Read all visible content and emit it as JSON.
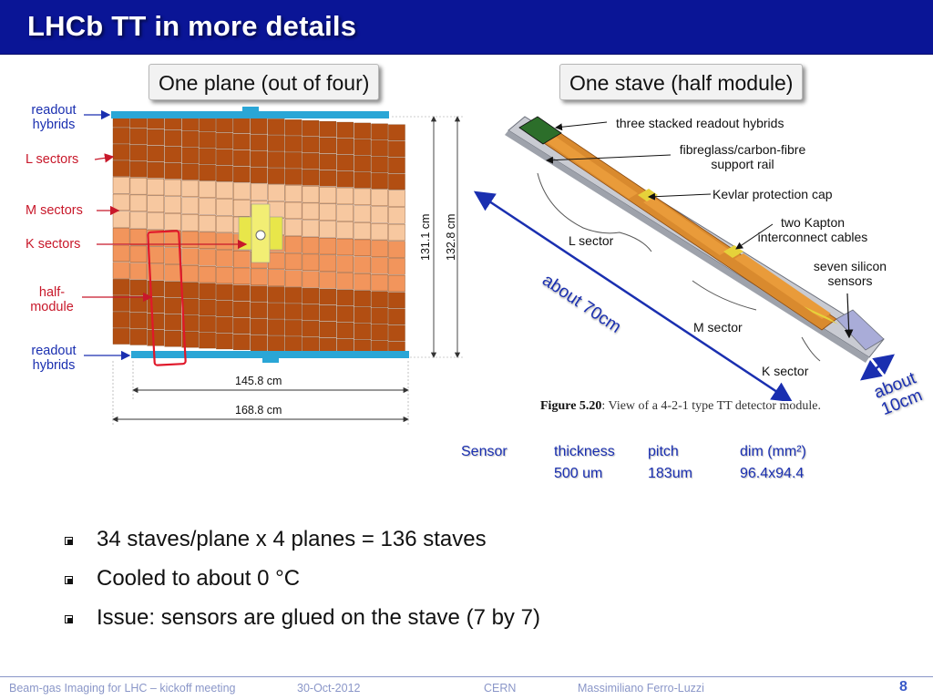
{
  "title": "LHCb TT in more details",
  "callouts": {
    "plane": "One plane (out of four)",
    "stave": "One stave (half module)"
  },
  "plane_labels": {
    "readout_top": "readout hybrids",
    "l_sectors": "L sectors",
    "m_sectors": "M sectors",
    "k_sectors": "K sectors",
    "half_module": "half- module",
    "readout_bottom": "readout hybrids"
  },
  "dimensions": {
    "inner_width": "145.8 cm",
    "outer_width": "168.8 cm",
    "inner_height": "131.1 cm",
    "outer_height": "132.8 cm"
  },
  "stave_labels": {
    "hybrids": "three stacked readout hybrids",
    "rail": "fibreglass/carbon-fibre support rail",
    "kevlar": "Kevlar protection cap",
    "kapton": "two Kapton interconnect cables",
    "sensors": "seven silicon sensors",
    "l_sector": "L sector",
    "m_sector": "M sector",
    "k_sector": "K sector"
  },
  "annotations": {
    "length": "about 70cm",
    "width": "about 10cm"
  },
  "figure_caption": {
    "label": "Figure 5.20",
    "text": ": View of a 4-2-1 type TT detector module."
  },
  "sensor_table": {
    "row_label": "Sensor",
    "headers": [
      "thickness",
      "pitch",
      "dim (mm²)"
    ],
    "values": [
      "500 um",
      "183um",
      "96.4x94.4"
    ]
  },
  "bullets": [
    "34 staves/plane  x  4 planes = 136 staves",
    "Cooled to about 0 °C",
    "Issue: sensors are glued on the stave (7 by 7)"
  ],
  "footer": {
    "meeting": "Beam-gas Imaging for LHC – kickoff meeting",
    "date": "30-Oct-2012",
    "place": "CERN",
    "author": "Massimiliano Ferro-Luzzi",
    "page": "8"
  },
  "colors": {
    "title_bar": "#0a1596",
    "l_sector": "#b24e12",
    "m_sector": "#f7c8a0",
    "k_sector": "#f2955c",
    "hybrid": "#2aa6d6",
    "accent_blue": "#1a2fb0",
    "accent_red": "#c8182a"
  }
}
